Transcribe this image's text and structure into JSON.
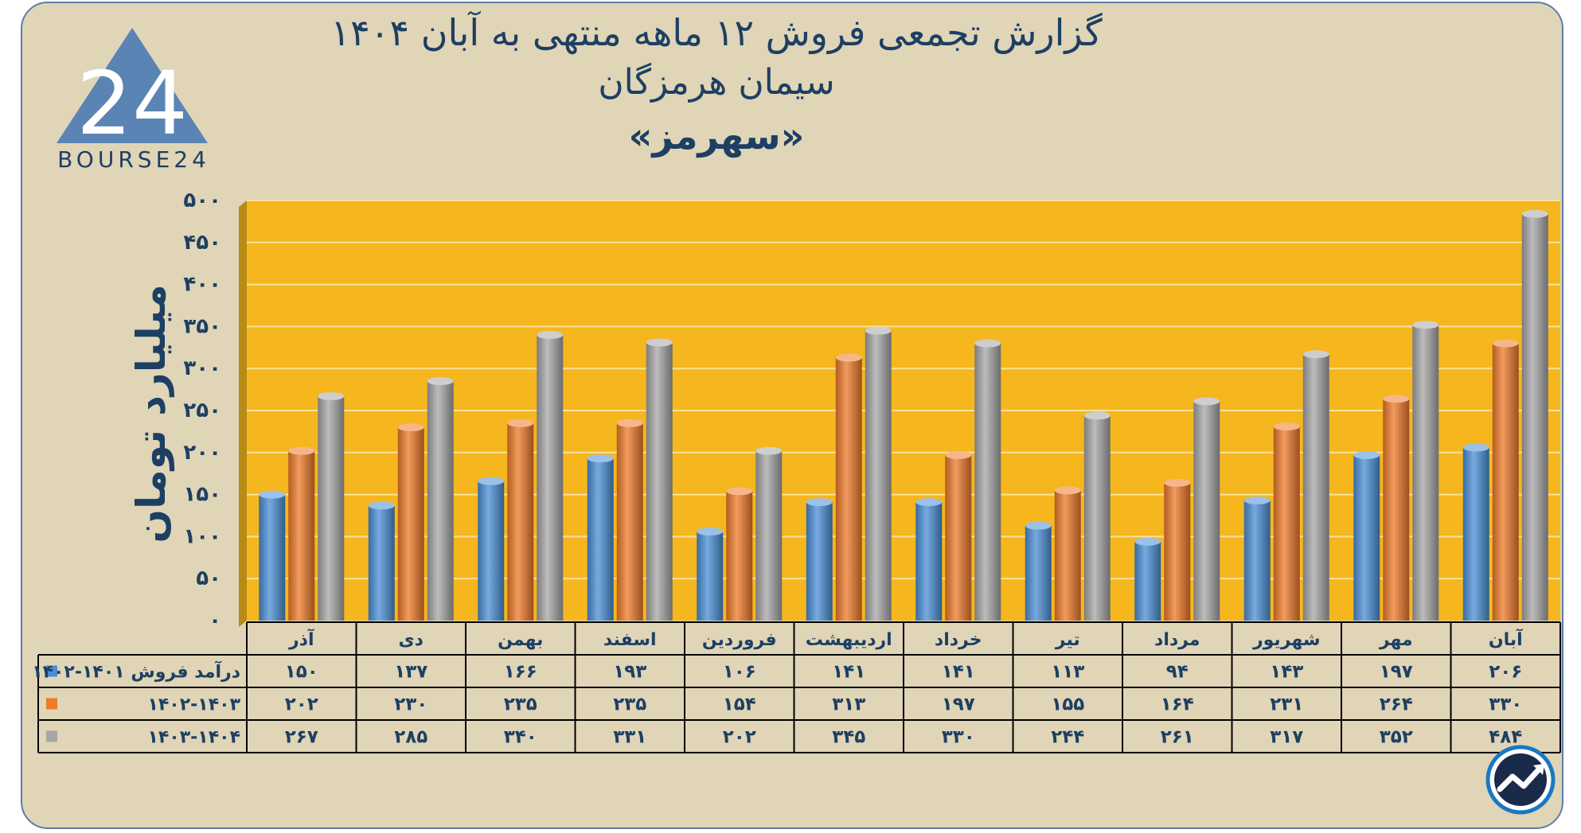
{
  "title_lines": [
    "گزارش تجمعی فروش ۱۲ ماهه منتهی به آبان ۱۴۰۴",
    "سیمان هرمزگان",
    "«سهرمز»"
  ],
  "logo": {
    "text": "BOURSE24",
    "mark": "24"
  },
  "chart_data": {
    "type": "bar",
    "title": "گزارش تجمعی فروش ۱۲ ماهه منتهی به آبان ۱۴۰۴",
    "subtitle": "سیمان هرمزگان «سهرمز»",
    "ylabel": "میلیارد تومان",
    "xlabel": "",
    "ylim": [
      0,
      500
    ],
    "yticks": [
      0,
      50,
      100,
      150,
      200,
      250,
      300,
      350,
      400,
      450,
      500
    ],
    "ytick_labels": [
      "۰",
      "۵۰",
      "۱۰۰",
      "۱۵۰",
      "۲۰۰",
      "۲۵۰",
      "۳۰۰",
      "۳۵۰",
      "۴۰۰",
      "۴۵۰",
      "۵۰۰"
    ],
    "grid": true,
    "legend": "data-table",
    "categories": [
      "آذر",
      "دی",
      "بهمن",
      "اسفند",
      "فروردین",
      "اردیبهشت",
      "خرداد",
      "تیر",
      "مرداد",
      "شهریور",
      "مهر",
      "آبان"
    ],
    "series": [
      {
        "name": "درآمد فروش ۱۴۰۱-۱۴۰۲",
        "color": "#4a8fd6",
        "values": [
          150,
          137,
          166,
          193,
          106,
          141,
          141,
          113,
          94,
          143,
          197,
          206
        ],
        "labels": [
          "۱۵۰",
          "۱۳۷",
          "۱۶۶",
          "۱۹۳",
          "۱۰۶",
          "۱۴۱",
          "۱۴۱",
          "۱۱۳",
          "۹۴",
          "۱۴۳",
          "۱۹۷",
          "۲۰۶"
        ]
      },
      {
        "name": "۱۴۰۲-۱۴۰۳",
        "color": "#ee7a2a",
        "values": [
          202,
          230,
          235,
          235,
          154,
          313,
          197,
          155,
          164,
          231,
          264,
          330
        ],
        "labels": [
          "۲۰۲",
          "۲۳۰",
          "۲۳۵",
          "۲۳۵",
          "۱۵۴",
          "۳۱۳",
          "۱۹۷",
          "۱۵۵",
          "۱۶۴",
          "۲۳۱",
          "۲۶۴",
          "۳۳۰"
        ]
      },
      {
        "name": "۱۴۰۳-۱۴۰۴",
        "color": "#a6a6a6",
        "values": [
          267,
          285,
          340,
          331,
          202,
          345,
          330,
          244,
          261,
          317,
          352,
          484
        ],
        "labels": [
          "۲۶۷",
          "۲۸۵",
          "۳۴۰",
          "۳۳۱",
          "۲۰۲",
          "۳۴۵",
          "۳۳۰",
          "۲۴۴",
          "۲۶۱",
          "۳۱۷",
          "۳۵۲",
          "۴۸۴"
        ]
      }
    ]
  },
  "colors": {
    "plot_bg": "#f5b61e",
    "card_bg": "#e0d5b7",
    "text": "#1d3f63",
    "border": "#5b7fa6"
  }
}
